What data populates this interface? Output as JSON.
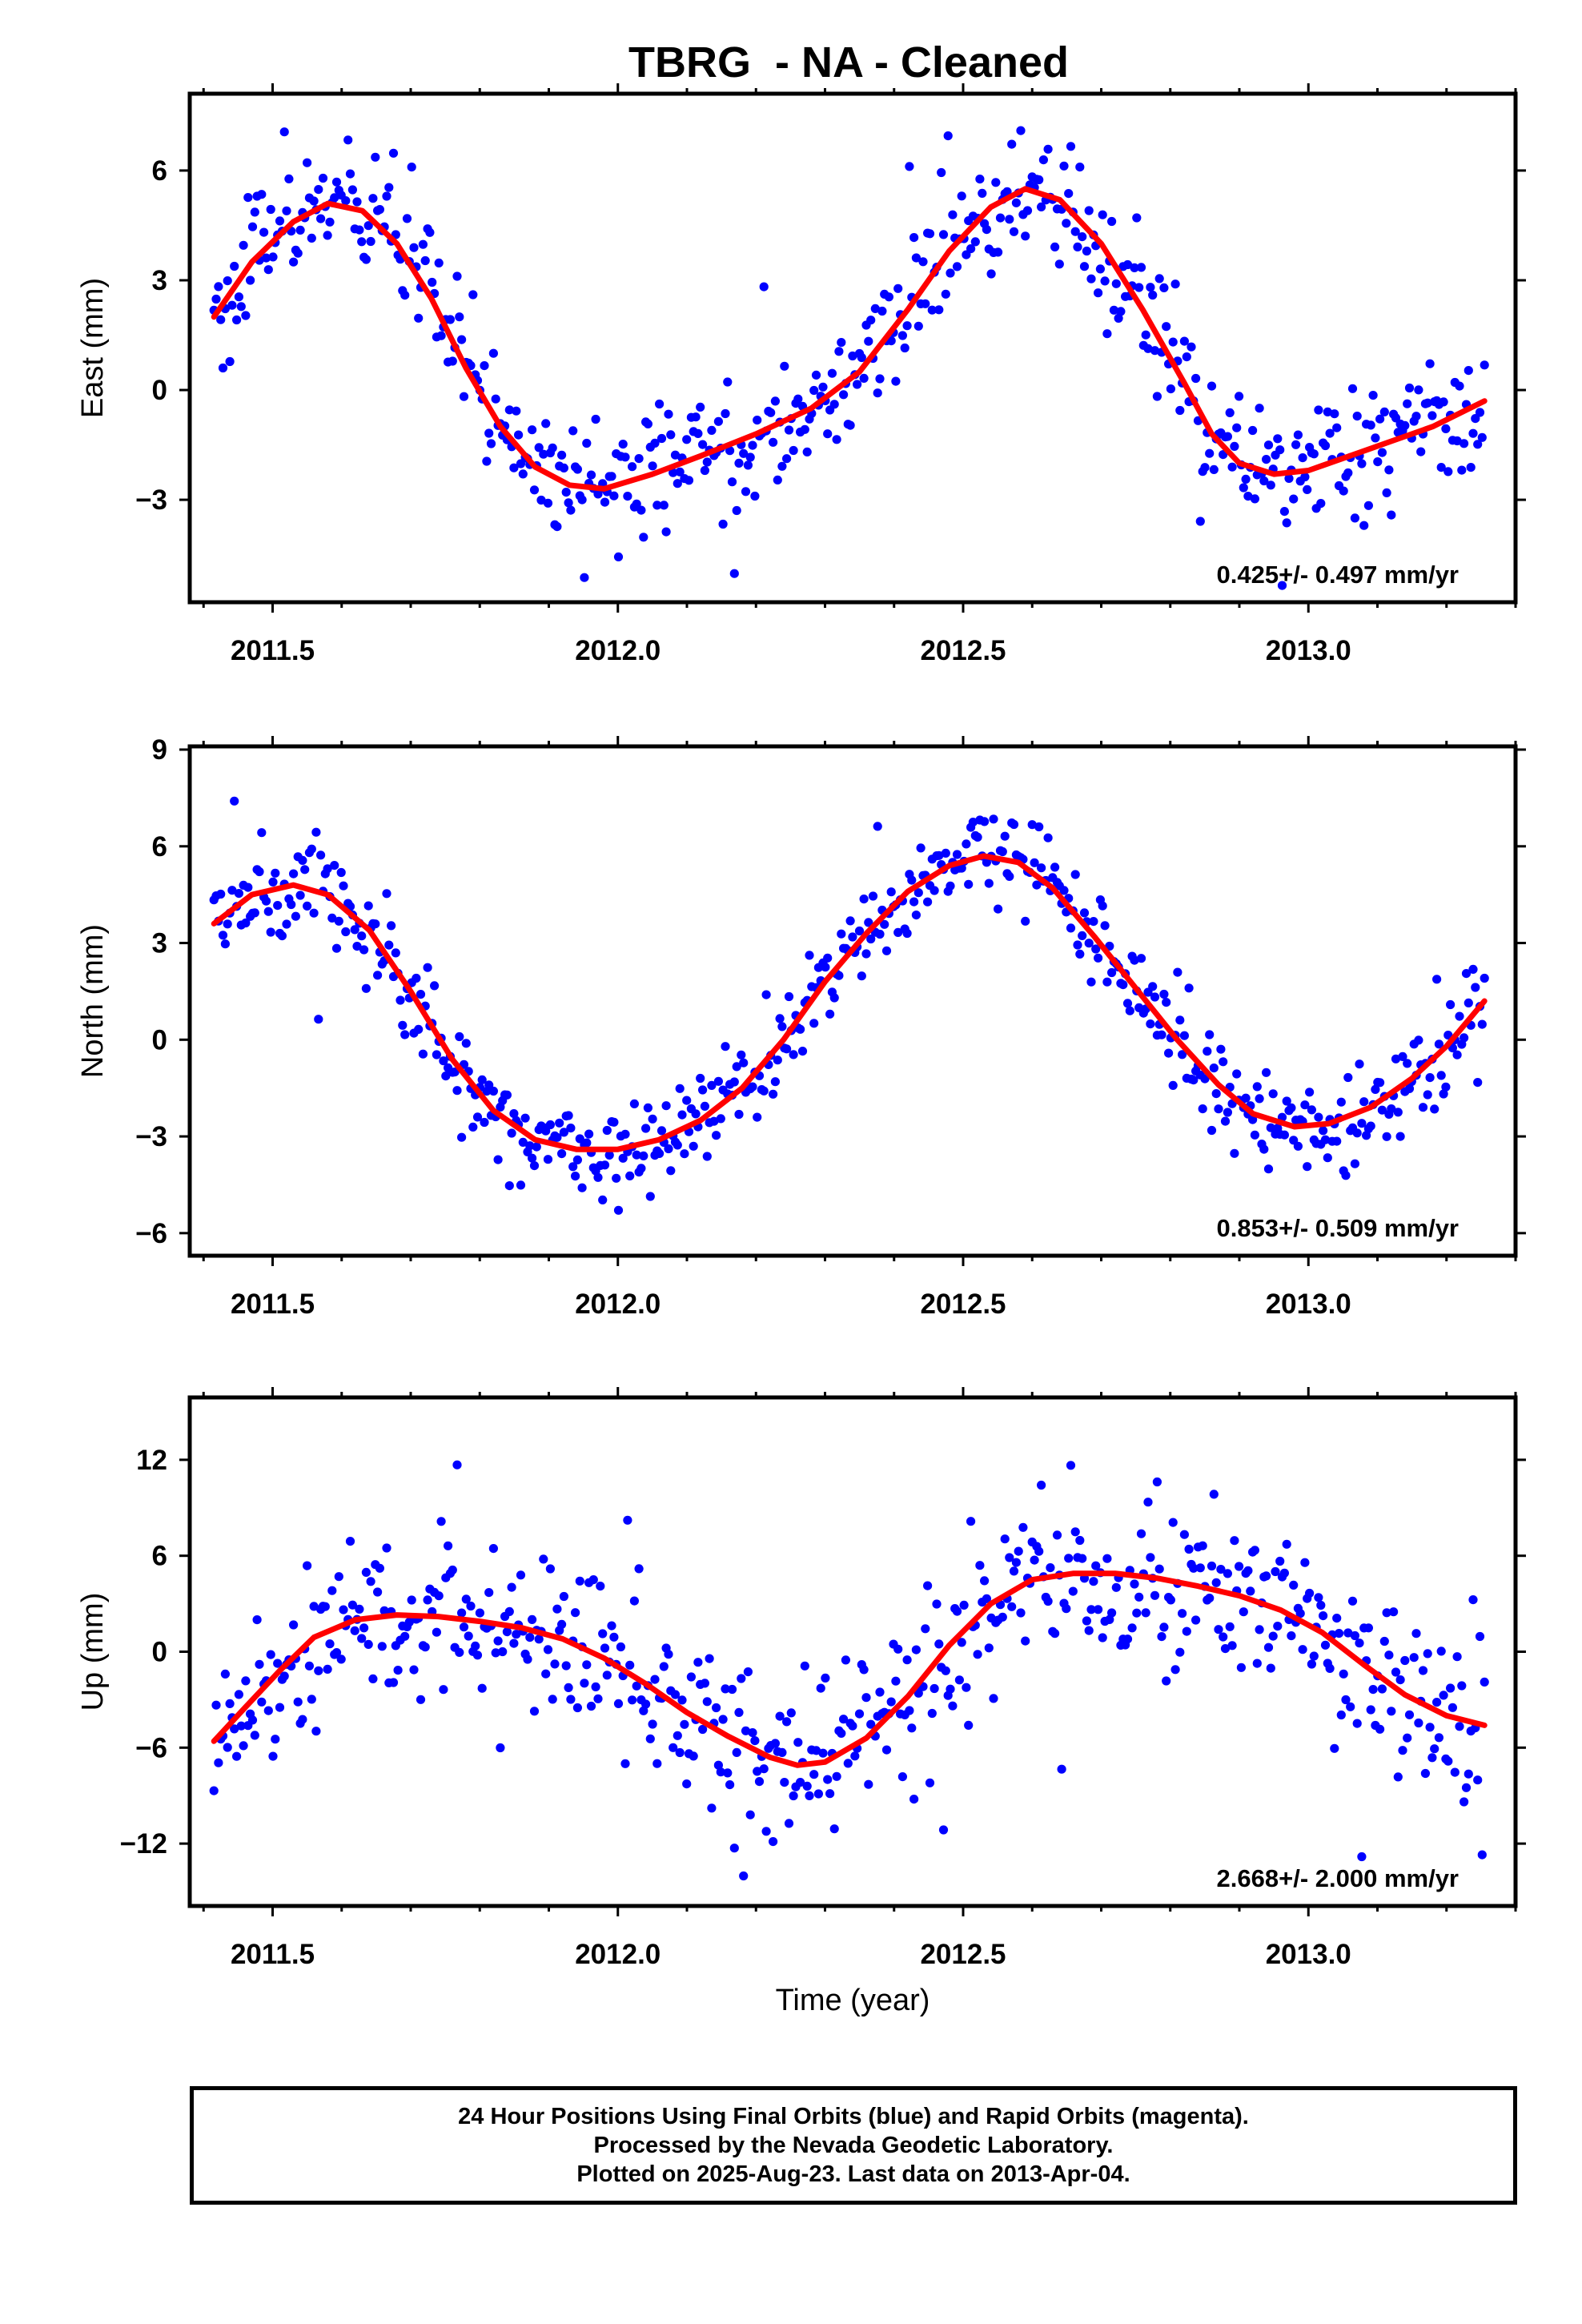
{
  "figure_title": "TBRG  - NA - Cleaned",
  "footer": {
    "line1": "24 Hour Positions Using Final Orbits (blue) and Rapid Orbits (magenta).",
    "line2": "Processed by the Nevada Geodetic Laboratory.",
    "line3": "Plotted on 2025-Aug-23. Last data on 2013-Apr-04."
  },
  "colors": {
    "points": "#0000ff",
    "fit": "#ff0000",
    "frame": "#000000"
  },
  "chart_data": [
    {
      "type": "scatter",
      "title": "TBRG  - NA - Cleaned",
      "ylabel": "East (mm)",
      "xlabel": "",
      "xlim": [
        2011.38,
        2013.3
      ],
      "ylim": [
        -5.8,
        8.1
      ],
      "xticks": [
        "2011.5",
        "2012.0",
        "2012.5",
        "2013.0"
      ],
      "yticks": [
        "-3",
        "0",
        "3",
        "6"
      ],
      "rate_label": "0.425+/- 0.497 mm/yr",
      "x_start": 2011.415,
      "x_end": 2013.255,
      "fit": [
        [
          2011.415,
          2.0
        ],
        [
          2011.47,
          3.5
        ],
        [
          2011.53,
          4.6
        ],
        [
          2011.58,
          5.1
        ],
        [
          2011.63,
          4.9
        ],
        [
          2011.68,
          4.0
        ],
        [
          2011.73,
          2.5
        ],
        [
          2011.78,
          0.6
        ],
        [
          2011.83,
          -1.0
        ],
        [
          2011.88,
          -2.1
        ],
        [
          2011.93,
          -2.6
        ],
        [
          2011.98,
          -2.7
        ],
        [
          2012.05,
          -2.3
        ],
        [
          2012.12,
          -1.8
        ],
        [
          2012.2,
          -1.2
        ],
        [
          2012.28,
          -0.5
        ],
        [
          2012.35,
          0.5
        ],
        [
          2012.42,
          2.2
        ],
        [
          2012.48,
          3.8
        ],
        [
          2012.54,
          5.0
        ],
        [
          2012.59,
          5.5
        ],
        [
          2012.64,
          5.2
        ],
        [
          2012.7,
          4.0
        ],
        [
          2012.76,
          2.2
        ],
        [
          2012.82,
          0.2
        ],
        [
          2012.86,
          -1.2
        ],
        [
          2012.9,
          -2.0
        ],
        [
          2012.95,
          -2.3
        ],
        [
          2013.0,
          -2.2
        ],
        [
          2013.06,
          -1.8
        ],
        [
          2013.12,
          -1.4
        ],
        [
          2013.18,
          -1.0
        ],
        [
          2013.255,
          -0.3
        ]
      ],
      "spread": 1.1,
      "outliers": 12
    },
    {
      "type": "scatter",
      "title": "",
      "ylabel": "North (mm)",
      "xlabel": "",
      "xlim": [
        2011.38,
        2013.3
      ],
      "ylim": [
        -6.7,
        9.1
      ],
      "xticks": [
        "2011.5",
        "2012.0",
        "2012.5",
        "2013.0"
      ],
      "yticks": [
        "-6",
        "-3",
        "0",
        "3",
        "6",
        "9"
      ],
      "rate_label": "0.853+/- 0.509 mm/yr",
      "x_start": 2011.415,
      "x_end": 2013.255,
      "fit": [
        [
          2011.415,
          3.6
        ],
        [
          2011.47,
          4.5
        ],
        [
          2011.53,
          4.8
        ],
        [
          2011.58,
          4.5
        ],
        [
          2011.64,
          3.4
        ],
        [
          2011.7,
          1.5
        ],
        [
          2011.76,
          -0.6
        ],
        [
          2011.82,
          -2.2
        ],
        [
          2011.88,
          -3.1
        ],
        [
          2011.94,
          -3.4
        ],
        [
          2012.0,
          -3.4
        ],
        [
          2012.06,
          -3.1
        ],
        [
          2012.12,
          -2.5
        ],
        [
          2012.18,
          -1.5
        ],
        [
          2012.24,
          0.0
        ],
        [
          2012.3,
          1.8
        ],
        [
          2012.36,
          3.3
        ],
        [
          2012.42,
          4.6
        ],
        [
          2012.48,
          5.4
        ],
        [
          2012.53,
          5.7
        ],
        [
          2012.58,
          5.5
        ],
        [
          2012.63,
          4.7
        ],
        [
          2012.69,
          3.2
        ],
        [
          2012.75,
          1.6
        ],
        [
          2012.81,
          0.0
        ],
        [
          2012.87,
          -1.4
        ],
        [
          2012.92,
          -2.3
        ],
        [
          2012.98,
          -2.7
        ],
        [
          2013.03,
          -2.6
        ],
        [
          2013.09,
          -2.1
        ],
        [
          2013.15,
          -1.2
        ],
        [
          2013.2,
          -0.2
        ],
        [
          2013.255,
          1.2
        ]
      ],
      "spread": 1.0,
      "outliers": 12
    },
    {
      "type": "scatter",
      "title": "",
      "ylabel": "Up (mm)",
      "xlabel": "Time (year)",
      "xlim": [
        2011.38,
        2013.3
      ],
      "ylim": [
        -15.9,
        15.9
      ],
      "xticks": [
        "2011.5",
        "2012.0",
        "2012.5",
        "2013.0"
      ],
      "yticks": [
        "-12",
        "-6",
        "0",
        "6",
        "12"
      ],
      "rate_label": "2.668+/- 2.000 mm/yr",
      "x_start": 2011.415,
      "x_end": 2013.255,
      "fit": [
        [
          2011.415,
          -5.6
        ],
        [
          2011.46,
          -3.5
        ],
        [
          2011.51,
          -1.2
        ],
        [
          2011.56,
          0.9
        ],
        [
          2011.62,
          2.0
        ],
        [
          2011.68,
          2.3
        ],
        [
          2011.74,
          2.2
        ],
        [
          2011.8,
          1.9
        ],
        [
          2011.86,
          1.5
        ],
        [
          2011.92,
          0.8
        ],
        [
          2011.98,
          -0.4
        ],
        [
          2012.04,
          -2.0
        ],
        [
          2012.1,
          -3.8
        ],
        [
          2012.16,
          -5.3
        ],
        [
          2012.22,
          -6.6
        ],
        [
          2012.26,
          -7.1
        ],
        [
          2012.3,
          -6.9
        ],
        [
          2012.36,
          -5.4
        ],
        [
          2012.42,
          -2.8
        ],
        [
          2012.48,
          0.4
        ],
        [
          2012.54,
          3.0
        ],
        [
          2012.6,
          4.5
        ],
        [
          2012.66,
          4.9
        ],
        [
          2012.72,
          4.9
        ],
        [
          2012.78,
          4.6
        ],
        [
          2012.84,
          4.1
        ],
        [
          2012.9,
          3.5
        ],
        [
          2012.96,
          2.6
        ],
        [
          2013.02,
          1.2
        ],
        [
          2013.08,
          -0.8
        ],
        [
          2013.14,
          -2.7
        ],
        [
          2013.2,
          -4.0
        ],
        [
          2013.255,
          -4.6
        ]
      ],
      "spread": 3.6,
      "outliers": 10
    }
  ]
}
